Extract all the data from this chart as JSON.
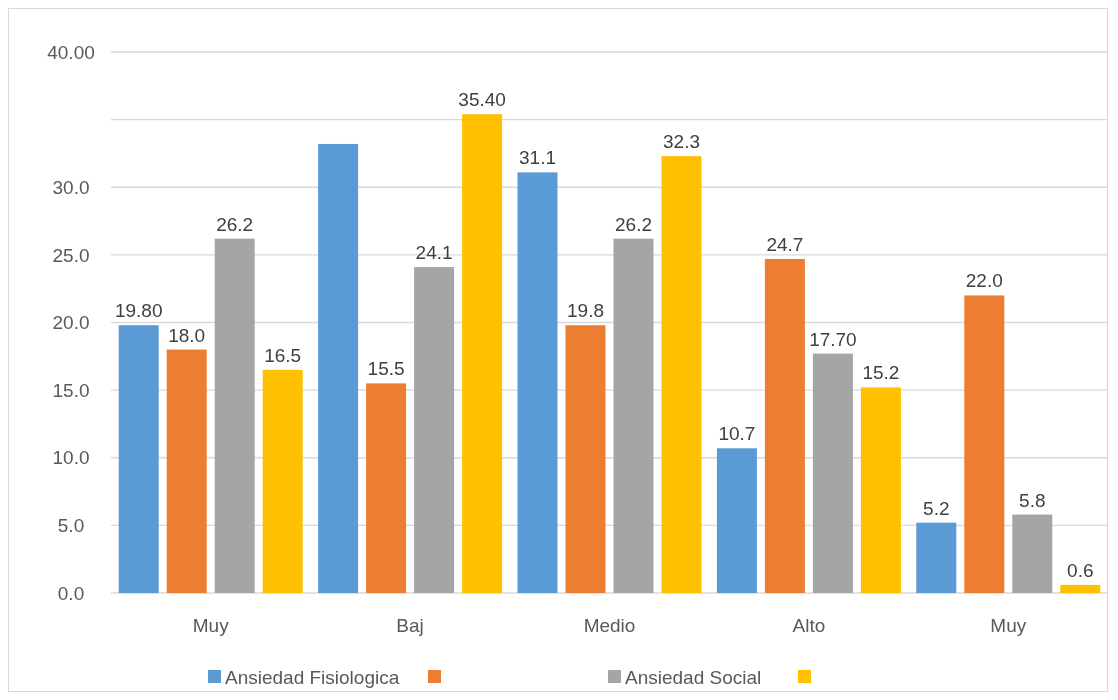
{
  "chart_data": {
    "type": "bar",
    "categories": [
      "Muy",
      "Baj",
      "Medio",
      "Alto",
      "Muy"
    ],
    "series": [
      {
        "name": "Ansiedad Fisiologica",
        "color": "#5b9bd5",
        "values": [
          19.8,
          33.2,
          31.1,
          10.7,
          5.2
        ],
        "value_labels": [
          "19.80",
          null,
          "31.1",
          "10.7",
          "5.2"
        ]
      },
      {
        "color": "#ed7d31",
        "values": [
          18.0,
          15.5,
          19.8,
          24.7,
          22.0
        ],
        "value_labels": [
          "18.0",
          "15.5",
          "19.8",
          "24.7",
          "22.0"
        ]
      },
      {
        "name": "Ansiedad Social",
        "color": "#a5a5a5",
        "values": [
          26.2,
          24.1,
          26.2,
          17.7,
          5.8
        ],
        "value_labels": [
          "26.2",
          "24.1",
          "26.2",
          "17.70",
          "5.8"
        ]
      },
      {
        "color": "#ffc000",
        "values": [
          16.5,
          35.4,
          32.3,
          15.2,
          0.6
        ],
        "value_labels": [
          "16.5",
          "35.40",
          "32.3",
          "15.2",
          "0.6"
        ]
      }
    ],
    "ylim": [
      0,
      40
    ],
    "yticks": [
      {
        "value": 0,
        "label": "0.0"
      },
      {
        "value": 5,
        "label": "5.0"
      },
      {
        "value": 10,
        "label": "10.0"
      },
      {
        "value": 15,
        "label": "15.0"
      },
      {
        "value": 20,
        "label": "20.0"
      },
      {
        "value": 25,
        "label": "25.0"
      },
      {
        "value": 30,
        "label": "30.0"
      },
      {
        "value": 35,
        "label": null
      },
      {
        "value": 40,
        "label": "40.00"
      }
    ],
    "grid": "y",
    "legend": "bottom"
  }
}
